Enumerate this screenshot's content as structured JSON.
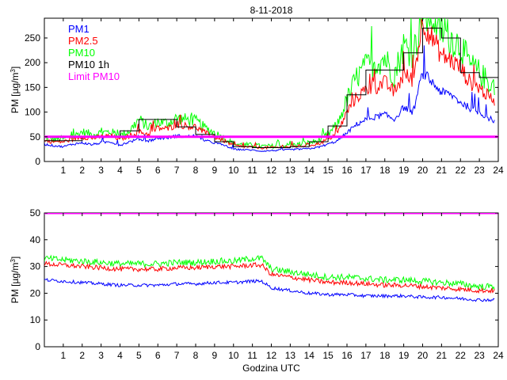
{
  "chart_data": [
    {
      "type": "line",
      "title": "8-11-2018",
      "xlabel": "",
      "ylabel": "PM [µg/m",
      "ylabel_sup": "3",
      "ylabel_close": "]",
      "xlim": [
        0,
        24
      ],
      "ylim": [
        0,
        290
      ],
      "xticks": [
        1,
        2,
        3,
        4,
        5,
        6,
        7,
        8,
        9,
        10,
        11,
        12,
        13,
        14,
        15,
        16,
        17,
        18,
        19,
        20,
        21,
        22,
        23,
        24
      ],
      "yticks": [
        0,
        50,
        100,
        150,
        200,
        250
      ],
      "legend": [
        "PM1",
        "PM2.5",
        "PM10",
        "PM10 1h",
        "Limit PM10"
      ],
      "legend_position": "top-left",
      "colors": {
        "PM1": "#0000ff",
        "PM2.5": "#ff0000",
        "PM10": "#00ff00",
        "PM10 1h": "#000000",
        "Limit PM10": "#ff00ff"
      },
      "limit": 50,
      "hourly_pm10": [
        42,
        42,
        50,
        50,
        62,
        85,
        85,
        70,
        55,
        40,
        30,
        28,
        28,
        30,
        40,
        72,
        135,
        185,
        185,
        220,
        270,
        250,
        180,
        170
      ],
      "series": [
        {
          "name": "PM1",
          "x": [
            0,
            0.5,
            1,
            1.5,
            2,
            2.5,
            3,
            3.5,
            4,
            4.5,
            5,
            5.5,
            6,
            6.5,
            7,
            7.5,
            8,
            8.5,
            9,
            9.5,
            10,
            10.5,
            11,
            11.5,
            12,
            12.5,
            13,
            13.5,
            14,
            14.5,
            15,
            15.5,
            16,
            16.5,
            17,
            17.5,
            18,
            18.5,
            19,
            19.5,
            20,
            20.5,
            21,
            21.5,
            22,
            22.5,
            23,
            23.5,
            23.8
          ],
          "values": [
            35,
            32,
            30,
            35,
            38,
            34,
            38,
            40,
            33,
            40,
            45,
            42,
            47,
            48,
            52,
            50,
            52,
            42,
            38,
            33,
            25,
            24,
            23,
            21,
            22,
            23,
            24,
            25,
            26,
            29,
            35,
            42,
            58,
            75,
            85,
            90,
            95,
            85,
            110,
            100,
            180,
            160,
            140,
            135,
            120,
            108,
            100,
            88,
            82
          ]
        },
        {
          "name": "PM2.5",
          "x": [
            0,
            0.5,
            1,
            1.5,
            2,
            2.5,
            3,
            3.5,
            4,
            4.5,
            5,
            5.5,
            6,
            6.5,
            7,
            7.5,
            8,
            8.5,
            9,
            9.5,
            10,
            10.5,
            11,
            11.5,
            12,
            12.5,
            13,
            13.5,
            14,
            14.5,
            15,
            15.5,
            16,
            16.5,
            17,
            17.5,
            18,
            18.5,
            19,
            19.5,
            20,
            20.5,
            21,
            21.5,
            22,
            22.5,
            23,
            23.5,
            23.8
          ],
          "values": [
            42,
            40,
            40,
            45,
            50,
            47,
            50,
            52,
            45,
            52,
            60,
            55,
            68,
            66,
            75,
            72,
            70,
            58,
            50,
            42,
            32,
            30,
            29,
            28,
            28,
            29,
            30,
            31,
            33,
            36,
            45,
            58,
            100,
            130,
            145,
            150,
            160,
            140,
            175,
            165,
            285,
            250,
            215,
            205,
            190,
            160,
            150,
            130,
            125
          ]
        },
        {
          "name": "PM10",
          "x": [
            0,
            0.5,
            1,
            1.5,
            2,
            2.5,
            3,
            3.5,
            4,
            4.5,
            5,
            5.5,
            6,
            6.5,
            7,
            7.5,
            8,
            8.5,
            9,
            9.5,
            10,
            10.5,
            11,
            11.5,
            12,
            12.5,
            13,
            13.5,
            14,
            14.5,
            15,
            15.5,
            16,
            16.5,
            17,
            17.5,
            18,
            18.5,
            19,
            19.5,
            20,
            20.5,
            21,
            21.5,
            22,
            22.5,
            23,
            23.5,
            23.8
          ],
          "values": [
            48,
            45,
            46,
            50,
            60,
            55,
            58,
            60,
            52,
            62,
            85,
            70,
            80,
            78,
            88,
            85,
            82,
            68,
            58,
            48,
            36,
            34,
            33,
            31,
            31,
            32,
            33,
            35,
            38,
            42,
            55,
            75,
            125,
            170,
            190,
            200,
            210,
            175,
            235,
            220,
            295,
            295,
            265,
            250,
            235,
            195,
            180,
            160,
            155
          ]
        }
      ]
    },
    {
      "type": "line",
      "title": "",
      "xlabel": "Godzina UTC",
      "ylabel": "PM [µg/m",
      "ylabel_sup": "3",
      "ylabel_close": "]",
      "xlim": [
        0,
        24
      ],
      "ylim": [
        0,
        50
      ],
      "xticks": [
        1,
        2,
        3,
        4,
        5,
        6,
        7,
        8,
        9,
        10,
        11,
        12,
        13,
        14,
        15,
        16,
        17,
        18,
        19,
        20,
        21,
        22,
        23,
        24
      ],
      "yticks": [
        0,
        10,
        20,
        30,
        40,
        50
      ],
      "limit": 50,
      "series": [
        {
          "name": "PM1",
          "x": [
            0,
            1,
            2,
            3,
            4,
            5,
            6,
            7,
            8,
            9,
            10,
            11,
            11.5,
            12,
            13,
            14,
            15,
            16,
            17,
            18,
            19,
            20,
            21,
            22,
            23,
            23.8
          ],
          "values": [
            25,
            24.5,
            24,
            23.5,
            23,
            23,
            23,
            23.5,
            23.5,
            24,
            24,
            24.5,
            24.5,
            22,
            21,
            20,
            19.5,
            19.5,
            19,
            19,
            19,
            18.5,
            18.5,
            18,
            17.5,
            17.5
          ]
        },
        {
          "name": "PM2.5",
          "x": [
            0,
            1,
            2,
            3,
            4,
            5,
            6,
            7,
            8,
            9,
            10,
            11,
            11.5,
            12,
            13,
            14,
            15,
            16,
            17,
            18,
            19,
            20,
            21,
            22,
            23,
            23.8
          ],
          "values": [
            31,
            30.5,
            30,
            29.5,
            29,
            29,
            29,
            29.5,
            29.5,
            30,
            30,
            30.5,
            30.5,
            27,
            26,
            25,
            24,
            24,
            23.5,
            23,
            23,
            22.5,
            22,
            21.5,
            21,
            21
          ]
        },
        {
          "name": "PM10",
          "x": [
            0,
            1,
            2,
            3,
            4,
            5,
            6,
            7,
            8,
            9,
            10,
            11,
            11.5,
            12,
            13,
            14,
            15,
            16,
            17,
            18,
            19,
            20,
            21,
            22,
            23,
            23.8
          ],
          "values": [
            33,
            32.5,
            32,
            31.5,
            31,
            31,
            31,
            31.5,
            31.5,
            32,
            32,
            33,
            33,
            29,
            28,
            27,
            26,
            26,
            25.5,
            25,
            25,
            24.5,
            24,
            23.5,
            22.5,
            22.5
          ]
        }
      ]
    }
  ]
}
